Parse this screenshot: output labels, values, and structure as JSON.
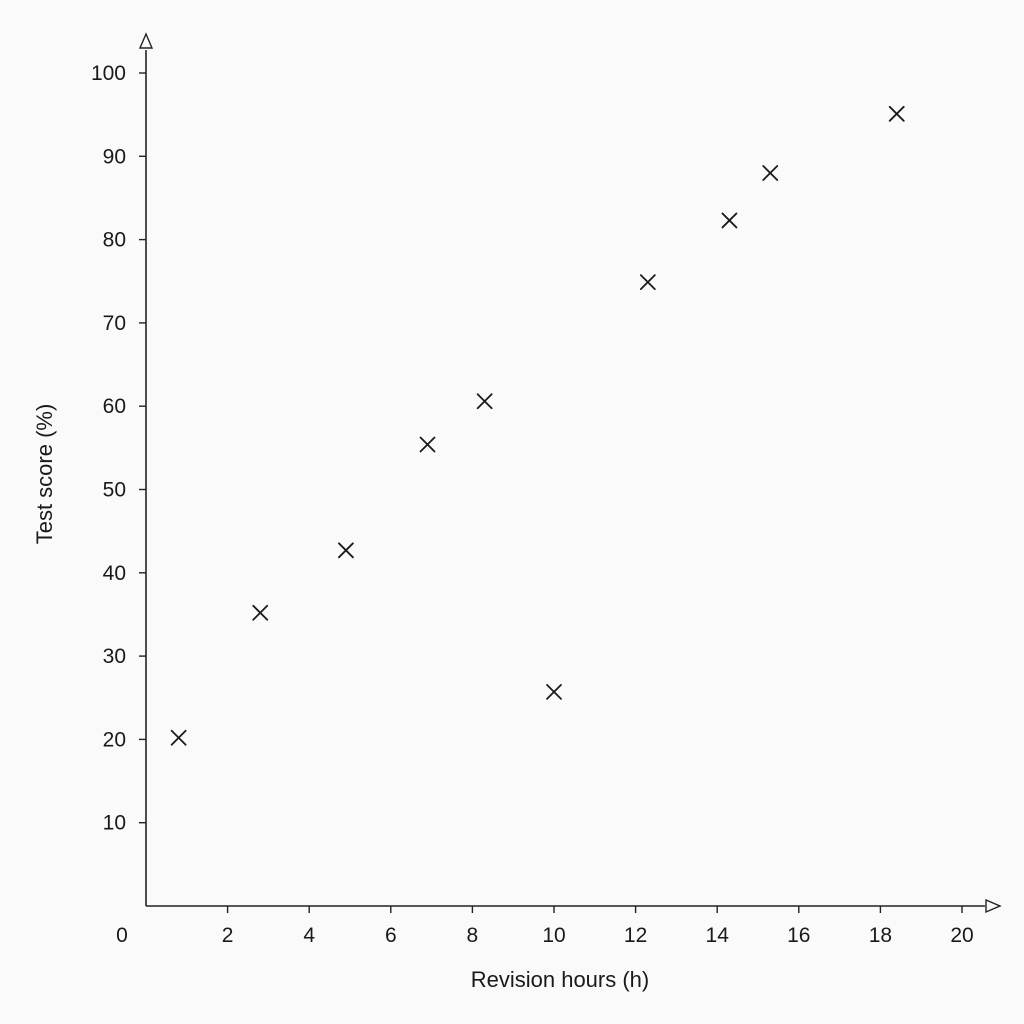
{
  "chart_data": {
    "type": "scatter",
    "title": "",
    "xlabel": "Revision hours (h)",
    "ylabel": "Test score (%)",
    "xlim": [
      0,
      20
    ],
    "ylim": [
      0,
      100
    ],
    "x_ticks": [
      0,
      2,
      4,
      6,
      8,
      10,
      12,
      14,
      16,
      18,
      20
    ],
    "x_tick_labels": [
      "0",
      "2",
      "4",
      "6",
      "8",
      "10",
      "12",
      "14",
      "16",
      "18",
      "20"
    ],
    "y_ticks": [
      10,
      20,
      30,
      40,
      50,
      60,
      70,
      80,
      90,
      100
    ],
    "y_tick_labels": [
      "10",
      "20",
      "30",
      "40",
      "50",
      "60",
      "70",
      "80",
      "90",
      "100"
    ],
    "grid": false,
    "marker": "x",
    "marker_color": "#1a1a1a",
    "axis_color": "#222222",
    "background": "#fafafa",
    "points": [
      {
        "x": 0.8,
        "y": 20.2
      },
      {
        "x": 2.8,
        "y": 35.2
      },
      {
        "x": 4.9,
        "y": 42.7
      },
      {
        "x": 6.9,
        "y": 55.4
      },
      {
        "x": 8.3,
        "y": 60.6
      },
      {
        "x": 10.0,
        "y": 25.7
      },
      {
        "x": 12.3,
        "y": 74.9
      },
      {
        "x": 14.3,
        "y": 82.3
      },
      {
        "x": 15.3,
        "y": 88.0
      },
      {
        "x": 18.4,
        "y": 95.1
      }
    ]
  }
}
